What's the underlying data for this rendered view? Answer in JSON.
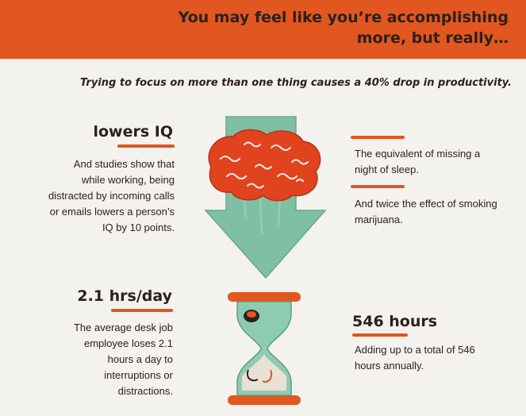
{
  "header": {
    "headline": "You may feel like you’re accomplishing more, but really…"
  },
  "subtitle": "Trying to focus on more than one thing causes a 40% drop in productivity.",
  "left_top": {
    "heading": "lowers IQ",
    "body": "And studies show that while working, being distracted by incoming calls or emails lowers a person’s IQ by 10 points."
  },
  "right_top": {
    "fact_1": "The equivalent of missing a night of sleep.",
    "fact_2": "And twice the effect of smoking marijuana."
  },
  "left_bottom": {
    "heading": "2.1 hrs/day",
    "body": "The average desk job employee loses 2.1 hours a day to interruptions or distractions."
  },
  "right_bottom": {
    "heading": "546 hours",
    "body": "Adding up to a total of 546 hours annually."
  },
  "colors": {
    "accent": "#e2561f",
    "arrow": "#7fbfa3",
    "brain": "#e0431e",
    "text": "#2b211d",
    "background": "#f4f2ee"
  },
  "icons": {
    "brain": "brain-icon",
    "arrow": "down-arrow-icon",
    "hourglass": "hourglass-icon"
  }
}
